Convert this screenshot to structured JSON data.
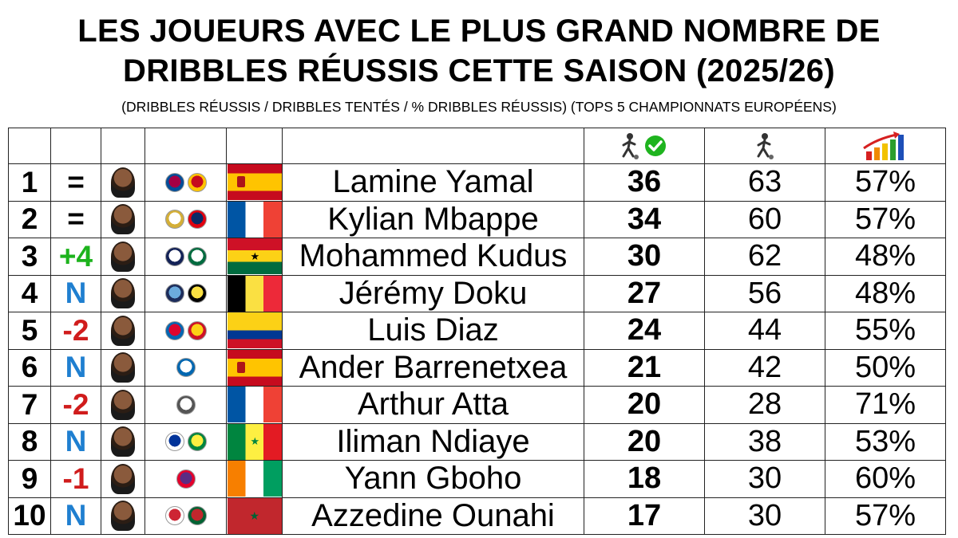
{
  "title_line1": "LES JOUEURS AVEC LE PLUS GRAND NOMBRE DE",
  "title_line2": "DRIBBLES RÉUSSIS CETTE SAISON (2025/26)",
  "subtitle": "(DRIBBLES RÉUSSIS / DRIBBLES TENTÉS / % DRIBBLES RÉUSSIS) (TOPS 5 CHAMPIONNATS EUROPÉENS)",
  "header_icons": [
    "dribble-success-icon",
    "dribble-attempt-icon",
    "percentage-chart-icon"
  ],
  "colors": {
    "up": "#1db31d",
    "down": "#d01c1c",
    "new": "#1f7fd0",
    "same": "#000000"
  },
  "rows": [
    {
      "rank": "1",
      "change": "=",
      "change_type": "same",
      "name": "Lamine Yamal",
      "succ": "36",
      "att": "63",
      "pct": "57%",
      "flag": "spain"
    },
    {
      "rank": "2",
      "change": "=",
      "change_type": "same",
      "name": "Kylian Mbappe",
      "succ": "34",
      "att": "60",
      "pct": "57%",
      "flag": "france"
    },
    {
      "rank": "3",
      "change": "+4",
      "change_type": "up",
      "name": "Mohammed Kudus",
      "succ": "30",
      "att": "62",
      "pct": "48%",
      "flag": "ghana"
    },
    {
      "rank": "4",
      "change": "N",
      "change_type": "new",
      "name": "Jérémy Doku",
      "succ": "27",
      "att": "56",
      "pct": "48%",
      "flag": "belgium"
    },
    {
      "rank": "5",
      "change": "-2",
      "change_type": "down",
      "name": "Luis Diaz",
      "succ": "24",
      "att": "44",
      "pct": "55%",
      "flag": "colombia"
    },
    {
      "rank": "6",
      "change": "N",
      "change_type": "new",
      "name": "Ander Barrenetxea",
      "succ": "21",
      "att": "42",
      "pct": "50%",
      "flag": "spain"
    },
    {
      "rank": "7",
      "change": "-2",
      "change_type": "down",
      "name": "Arthur Atta",
      "succ": "20",
      "att": "28",
      "pct": "71%",
      "flag": "france"
    },
    {
      "rank": "8",
      "change": "N",
      "change_type": "new",
      "name": "Iliman Ndiaye",
      "succ": "20",
      "att": "38",
      "pct": "53%",
      "flag": "senegal"
    },
    {
      "rank": "9",
      "change": "-1",
      "change_type": "down",
      "name": "Yann Gboho",
      "succ": "18",
      "att": "30",
      "pct": "60%",
      "flag": "ivory-coast"
    },
    {
      "rank": "10",
      "change": "N",
      "change_type": "new",
      "name": "Azzedine Ounahi",
      "succ": "17",
      "att": "30",
      "pct": "57%",
      "flag": "morocco"
    }
  ]
}
